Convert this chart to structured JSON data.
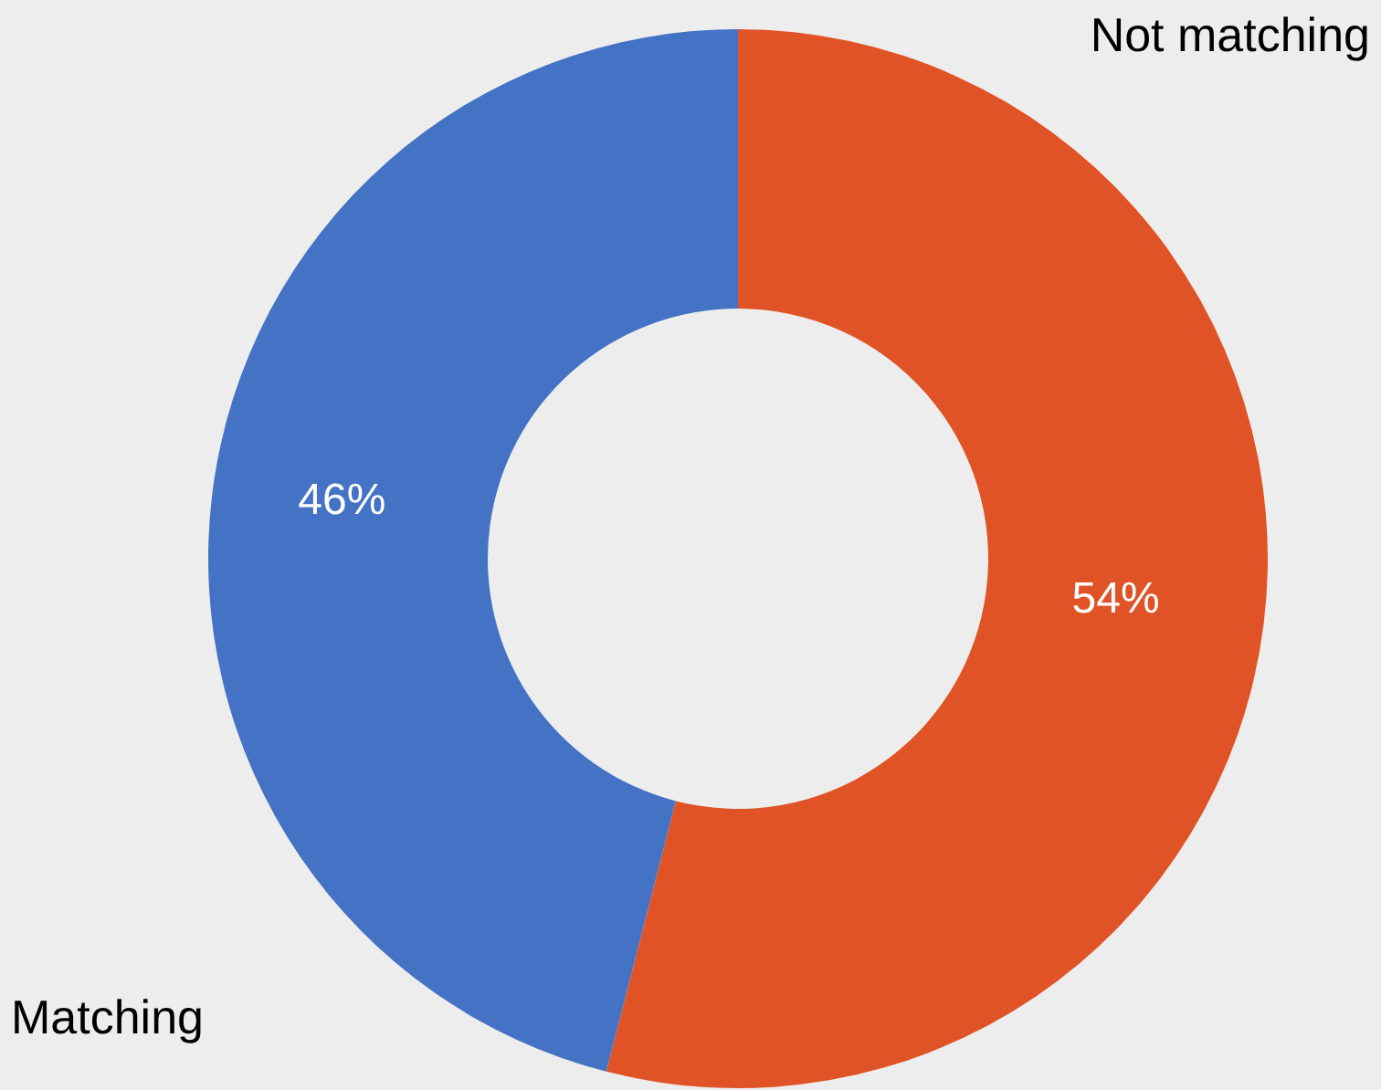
{
  "chart_data": {
    "type": "donut",
    "categories": [
      "Not matching",
      "Matching"
    ],
    "values": [
      54,
      46
    ],
    "colors": [
      "#e05326",
      "#4472c4"
    ],
    "value_labels": [
      "54%",
      "46%"
    ]
  }
}
